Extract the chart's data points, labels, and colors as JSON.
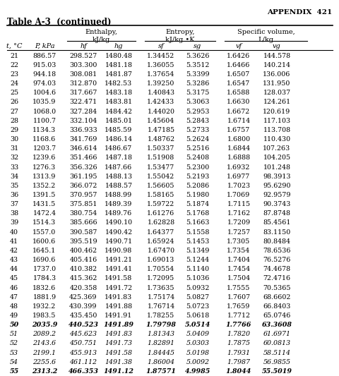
{
  "appendix_text": "APPENDIX  421",
  "title": "Table A-3  (continued)",
  "group_headers": [
    "Enthalpy,\nkJ/kg",
    "Entropy,\nkJ/kg •K",
    "Specific volume,\nL/kg"
  ],
  "col_headers": [
    "t, °C",
    "P, kPa",
    "hf",
    "hg",
    "sf",
    "sg",
    "vf",
    "vg"
  ],
  "rows": [
    [
      21,
      886.57,
      298.527,
      1480.48,
      1.34452,
      5.3626,
      1.6426,
      144.578
    ],
    [
      22,
      915.03,
      303.3,
      1481.18,
      1.36055,
      5.3512,
      1.6466,
      140.214
    ],
    [
      23,
      944.18,
      308.081,
      1481.87,
      1.37654,
      5.3399,
      1.6507,
      136.006
    ],
    [
      24,
      974.03,
      312.87,
      1482.53,
      1.3925,
      5.3286,
      1.6547,
      131.95
    ],
    [
      25,
      1004.6,
      317.667,
      1483.18,
      1.40843,
      5.3175,
      1.6588,
      128.037
    ],
    [
      26,
      1035.9,
      322.471,
      1483.81,
      1.42433,
      5.3063,
      1.663,
      124.261
    ],
    [
      27,
      1068.0,
      327.284,
      1484.42,
      1.4402,
      5.2953,
      1.6672,
      120.619
    ],
    [
      28,
      1100.7,
      332.104,
      1485.01,
      1.45604,
      5.2843,
      1.6714,
      117.103
    ],
    [
      29,
      1134.3,
      336.933,
      1485.59,
      1.47185,
      5.2733,
      1.6757,
      113.708
    ],
    [
      30,
      1168.6,
      341.769,
      1486.14,
      1.48762,
      5.2624,
      1.68,
      110.43
    ],
    [
      31,
      "1203.7",
      346.614,
      1486.67,
      1.50337,
      5.2516,
      1.6844,
      107.263
    ],
    [
      32,
      1239.6,
      351.466,
      1487.18,
      1.51908,
      5.2408,
      1.6888,
      104.205
    ],
    [
      33,
      1276.3,
      356.326,
      1487.66,
      1.53477,
      5.23,
      1.6932,
      101.248
    ],
    [
      34,
      1313.9,
      361.195,
      1488.13,
      1.55042,
      5.2193,
      1.6977,
      98.3913
    ],
    [
      35,
      1352.2,
      366.072,
      1488.57,
      1.56605,
      5.2086,
      1.7023,
      95.629
    ],
    [
      36,
      1391.5,
      370.957,
      1488.99,
      1.58165,
      5.198,
      1.7069,
      92.9579
    ],
    [
      37,
      1431.5,
      375.851,
      1489.39,
      1.59722,
      5.1874,
      1.7115,
      90.3743
    ],
    [
      38,
      1472.4,
      380.754,
      1489.76,
      1.61276,
      5.1768,
      1.7162,
      87.8748
    ],
    [
      39,
      1514.3,
      385.666,
      1490.1,
      1.62828,
      5.1663,
      1.7209,
      85.4561
    ],
    [
      40,
      1557.0,
      390.587,
      1490.42,
      1.64377,
      5.1558,
      1.7257,
      83.115
    ],
    [
      41,
      1600.6,
      395.519,
      1490.71,
      1.65924,
      5.1453,
      1.7305,
      80.8484
    ],
    [
      42,
      1645.1,
      400.462,
      1490.98,
      1.6747,
      5.1349,
      1.7354,
      78.6536
    ],
    [
      43,
      1690.6,
      405.416,
      1491.21,
      1.69013,
      5.1244,
      1.7404,
      76.5276
    ],
    [
      44,
      1737.0,
      410.382,
      1491.41,
      1.70554,
      5.114,
      1.7454,
      74.4678
    ],
    [
      45,
      1784.3,
      415.362,
      1491.58,
      1.72095,
      5.1036,
      1.7504,
      72.4716
    ],
    [
      46,
      1832.6,
      420.358,
      1491.72,
      1.73635,
      5.0932,
      1.7555,
      70.5365
    ],
    [
      47,
      1881.9,
      425.369,
      1491.83,
      1.75174,
      5.0827,
      1.7607,
      68.6602
    ],
    [
      48,
      1932.2,
      430.399,
      1491.88,
      1.76714,
      5.0723,
      1.7659,
      66.8403
    ],
    [
      49,
      1983.5,
      435.45,
      1491.91,
      1.78255,
      5.0618,
      1.7712,
      65.0746
    ],
    [
      50,
      2035.9,
      440.523,
      1491.89,
      1.79798,
      5.0514,
      1.7766,
      63.3608
    ],
    [
      51,
      2089.2,
      445.623,
      1491.83,
      1.81343,
      5.0409,
      1.782,
      61.6971
    ],
    [
      52,
      2143.6,
      450.751,
      1491.73,
      1.82891,
      5.0303,
      1.7875,
      60.0813
    ],
    [
      53,
      2199.1,
      455.913,
      1491.58,
      1.84445,
      5.0198,
      1.7931,
      58.5114
    ],
    [
      54,
      2255.6,
      461.112,
      1491.38,
      1.86004,
      5.0092,
      1.7987,
      56.9855
    ],
    [
      55,
      2313.2,
      466.353,
      1491.12,
      1.87571,
      4.9985,
      1.8044,
      55.5019
    ]
  ],
  "italic_rows": [
    50,
    51,
    52,
    53,
    54,
    55
  ],
  "bold_italic_rows": [
    50,
    55
  ]
}
